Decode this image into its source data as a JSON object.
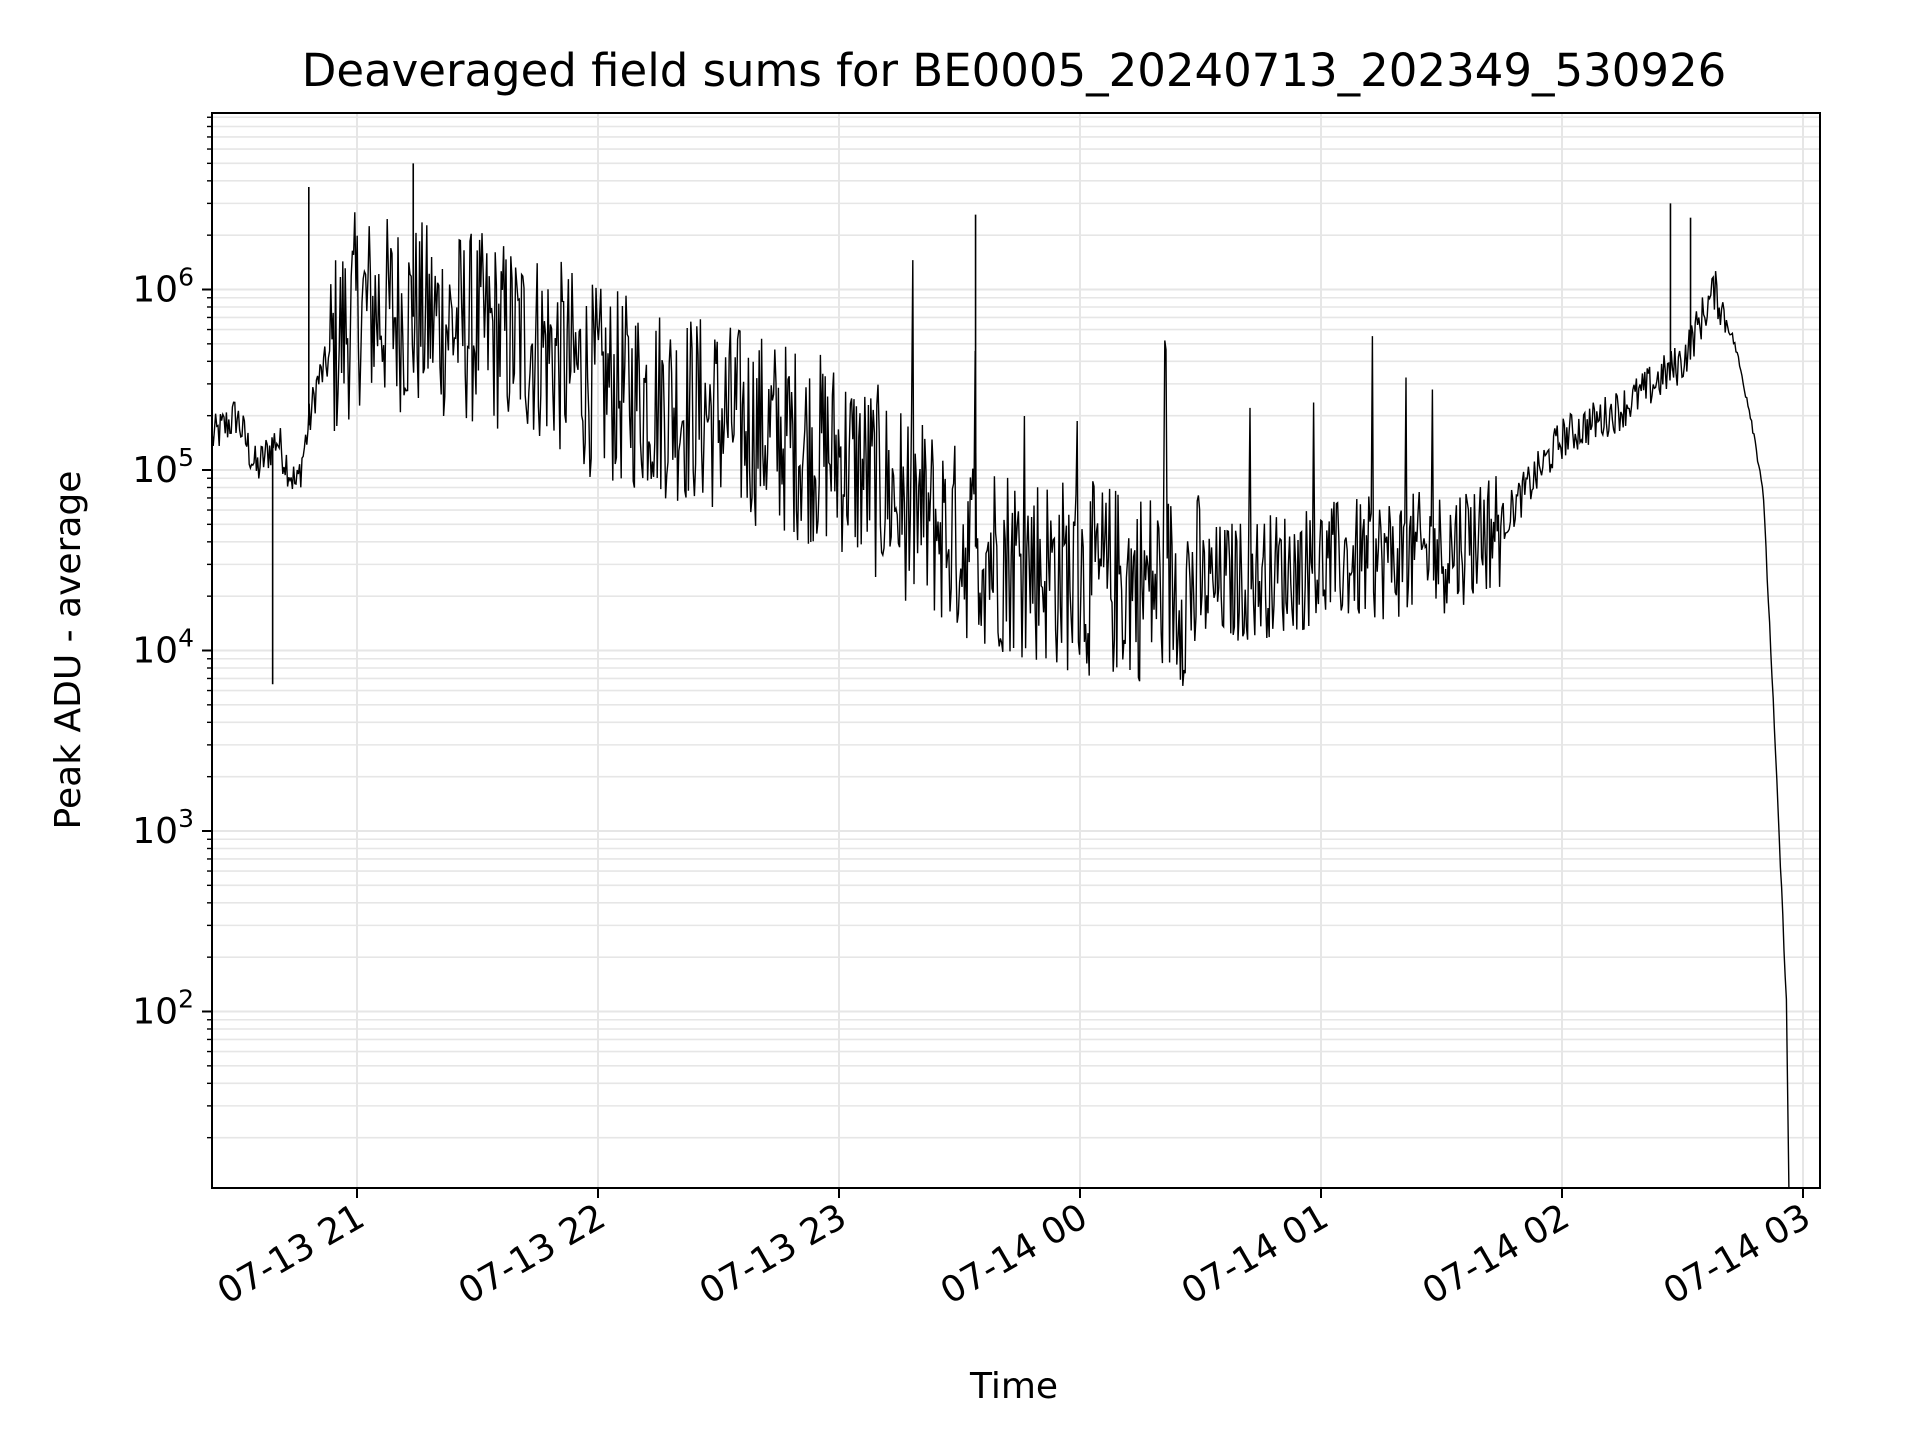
{
  "chart_data": {
    "type": "line",
    "title": "Deaveraged field sums for BE0005_20240713_202349_530926",
    "xlabel": "Time",
    "ylabel": "Peak ADU - average",
    "y_scale": "log",
    "grid": "on (major and minor)",
    "line_color": "#000000",
    "x_range": [
      "07-13 20:24",
      "07-14 03:05"
    ],
    "y_range": [
      10,
      10000000
    ],
    "x_ticks": [
      "07-13 21",
      "07-13 22",
      "07-13 23",
      "07-14 00",
      "07-14 01",
      "07-14 02",
      "07-14 03"
    ],
    "y_ticks": [
      {
        "base": "10",
        "exp": "2",
        "value": 100
      },
      {
        "base": "10",
        "exp": "3",
        "value": 1000
      },
      {
        "base": "10",
        "exp": "4",
        "value": 10000
      },
      {
        "base": "10",
        "exp": "5",
        "value": 100000
      },
      {
        "base": "10",
        "exp": "6",
        "value": 1000000
      }
    ],
    "series": [
      {
        "baseline": {
          "x": [
            "07-13 20:24",
            "07-13 20:30",
            "07-13 20:35",
            "07-13 20:40",
            "07-13 20:45",
            "07-13 20:50",
            "07-13 20:55",
            "07-13 21:00",
            "07-13 21:15",
            "07-13 21:30",
            "07-13 21:45",
            "07-13 22:00",
            "07-13 22:30",
            "07-13 23:00",
            "07-13 23:30",
            "07-14 00:00",
            "07-14 00:30",
            "07-14 01:00",
            "07-14 01:30",
            "07-14 01:45",
            "07-14 02:00",
            "07-14 02:15",
            "07-14 02:30",
            "07-14 02:38",
            "07-14 02:43",
            "07-14 02:47",
            "07-14 02:50",
            "07-14 02:52",
            "07-14 02:54",
            "07-14 02:56"
          ],
          "y": [
            150000,
            200000,
            100000,
            150000,
            80000,
            300000,
            500000,
            800000,
            700000,
            600000,
            500000,
            300000,
            200000,
            120000,
            40000,
            25000,
            22000,
            30000,
            35000,
            50000,
            150000,
            220000,
            400000,
            1000000,
            500000,
            200000,
            80000,
            10000,
            1000,
            100
          ]
        },
        "spikes": [
          {
            "x": "07-13 20:48",
            "y": 3700000
          },
          {
            "x": "07-13 21:14",
            "y": 5000000
          },
          {
            "x": "07-13 23:34",
            "y": 2600000
          },
          {
            "x": "07-14 02:27",
            "y": 3000000
          },
          {
            "x": "07-14 02:32",
            "y": 2500000
          },
          {
            "x": "07-13 20:39",
            "y": 6500
          }
        ]
      }
    ]
  }
}
